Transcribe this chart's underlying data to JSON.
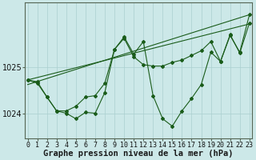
{
  "xlabel": "Graphe pression niveau de la mer (hPa)",
  "background_color": "#cce8e8",
  "grid_color": "#aacfcf",
  "line_color": "#1a5c1a",
  "x_ticks": [
    0,
    1,
    2,
    3,
    4,
    5,
    6,
    7,
    8,
    9,
    10,
    11,
    12,
    13,
    14,
    15,
    16,
    17,
    18,
    19,
    20,
    21,
    22,
    23
  ],
  "y_ticks": [
    1024,
    1025
  ],
  "ylim": [
    1023.45,
    1026.4
  ],
  "xlim": [
    -0.3,
    23.3
  ],
  "trend1": {
    "x": [
      0,
      23
    ],
    "y": [
      1024.72,
      1025.93
    ]
  },
  "trend2": {
    "x": [
      0,
      23
    ],
    "y": [
      1024.62,
      1026.13
    ]
  },
  "zigzag1": {
    "x": [
      0,
      1,
      2,
      3,
      4,
      5,
      6,
      7,
      8,
      9,
      10,
      11,
      12,
      13,
      14,
      15,
      16,
      17,
      18,
      19,
      20,
      21,
      22,
      23
    ],
    "y": [
      1024.72,
      1024.68,
      1024.35,
      1024.05,
      1024.05,
      1024.15,
      1024.35,
      1024.38,
      1024.65,
      1025.38,
      1025.62,
      1025.22,
      1025.05,
      1025.02,
      1025.02,
      1025.1,
      1025.15,
      1025.25,
      1025.35,
      1025.55,
      1025.12,
      1025.7,
      1025.3,
      1025.95
    ]
  },
  "zigzag2": {
    "x": [
      0,
      1,
      2,
      3,
      4,
      5,
      6,
      7,
      8,
      9,
      10,
      11,
      12,
      13,
      14,
      15,
      16,
      17,
      18,
      19,
      20,
      21,
      22,
      23
    ],
    "y": [
      1024.72,
      1024.65,
      1024.35,
      1024.05,
      1024.0,
      1023.88,
      1024.02,
      1024.0,
      1024.45,
      1025.38,
      1025.65,
      1025.28,
      1025.55,
      1024.38,
      1023.88,
      1023.72,
      1024.05,
      1024.32,
      1024.62,
      1025.32,
      1025.12,
      1025.68,
      1025.32,
      1026.13
    ]
  },
  "tick_fontsize": 6,
  "xlabel_fontsize": 7.5
}
